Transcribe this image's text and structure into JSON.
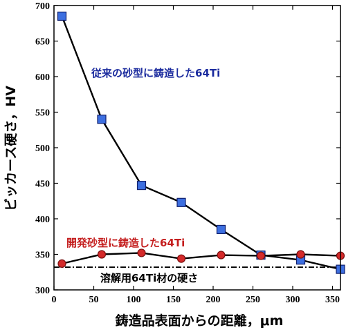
{
  "chart_data": {
    "type": "line",
    "xlabel": "鋳造品表面からの距離，μm",
    "ylabel": "ビッカース硬さ，HV",
    "xlim": [
      0,
      360
    ],
    "ylim": [
      300,
      700
    ],
    "xticks": [
      0,
      50,
      100,
      150,
      200,
      250,
      300,
      350
    ],
    "yticks": [
      300,
      350,
      400,
      450,
      500,
      550,
      600,
      650,
      700
    ],
    "grid": false,
    "series": [
      {
        "name": "従来の砂型に鋳造した64Ti",
        "color": "#1b2b9e",
        "marker": "square",
        "marker_color": "#3d6fe0",
        "x": [
          10,
          60,
          110,
          160,
          210,
          260,
          310,
          360
        ],
        "y": [
          685,
          540,
          447,
          423,
          385,
          349,
          342,
          329
        ]
      },
      {
        "name": "開発砂型に鋳造した64Ti",
        "color": "#c41d1d",
        "marker": "circle",
        "marker_color": "#d42a2a",
        "x": [
          10,
          60,
          110,
          160,
          210,
          260,
          310,
          360
        ],
        "y": [
          337,
          350,
          352,
          344,
          349,
          348,
          350,
          348
        ]
      }
    ],
    "reference_line": {
      "label": "溶解用64Ti材の硬さ",
      "y": 332,
      "style": "dash-dot",
      "color": "#000000"
    }
  }
}
